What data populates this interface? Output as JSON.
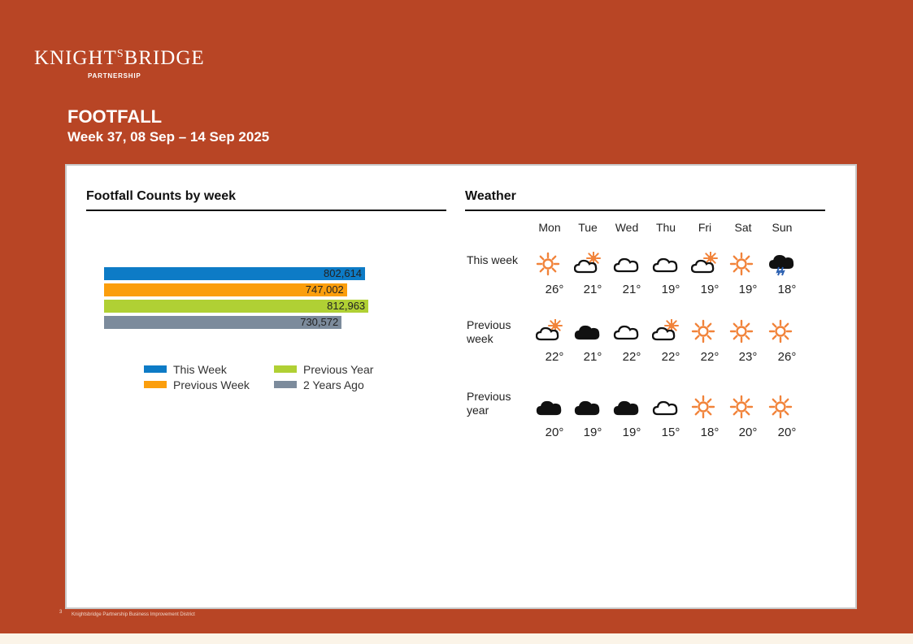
{
  "brand": {
    "name_part1": "KNIGHT",
    "name_s": "S",
    "name_part2": "BRIDGE",
    "sub": "PARTNERSHIP"
  },
  "header": {
    "title": "FOOTFALL",
    "subtitle": "Week 37, 08 Sep – 14 Sep 2025"
  },
  "footer": {
    "page": "3",
    "text": "Knightsbridge Partnership Business Improvement District"
  },
  "chart_data": {
    "type": "bar",
    "orientation": "horizontal",
    "title": "Footfall Counts by week",
    "categories": [
      "This Week",
      "Previous Week",
      "Previous Year",
      "2 Years Ago"
    ],
    "values": [
      802614,
      747002,
      812963,
      730572
    ],
    "value_labels": [
      "802,614",
      "747,002",
      "812,963",
      "730,572"
    ],
    "colors": [
      "#0d7bc6",
      "#fb9e0c",
      "#b0d034",
      "#7c8b9c"
    ],
    "xlim": [
      0,
      1000000
    ],
    "legend": [
      {
        "label": "This Week",
        "color": "#0d7bc6"
      },
      {
        "label": "Previous Week",
        "color": "#fb9e0c"
      },
      {
        "label": "Previous Year",
        "color": "#b0d034"
      },
      {
        "label": "2 Years Ago",
        "color": "#7c8b9c"
      }
    ],
    "legend_position": "bottom",
    "grid": false
  },
  "weather": {
    "title": "Weather",
    "days": [
      "Mon",
      "Tue",
      "Wed",
      "Thu",
      "Fri",
      "Sat",
      "Sun"
    ],
    "rows": [
      {
        "label": "This week",
        "icons": [
          "sun-icon",
          "partly-cloudy-icon",
          "cloud-icon",
          "cloud-icon",
          "partly-cloudy-icon",
          "sun-icon",
          "storm-cloud-icon"
        ],
        "temps": [
          "26°",
          "21°",
          "21°",
          "19°",
          "19°",
          "19°",
          "18°"
        ]
      },
      {
        "label": "Previous week",
        "icons": [
          "partly-cloudy-icon",
          "dark-cloud-icon",
          "cloud-icon",
          "partly-cloudy-icon",
          "sun-icon",
          "sun-icon",
          "sun-icon"
        ],
        "temps": [
          "22°",
          "21°",
          "22°",
          "22°",
          "22°",
          "23°",
          "26°"
        ]
      },
      {
        "label": "Previous year",
        "icons": [
          "dark-cloud-icon",
          "dark-cloud-icon",
          "dark-cloud-icon",
          "cloud-icon",
          "sun-icon",
          "sun-icon",
          "sun-icon"
        ],
        "temps": [
          "20°",
          "19°",
          "19°",
          "15°",
          "18°",
          "20°",
          "20°"
        ]
      }
    ]
  }
}
